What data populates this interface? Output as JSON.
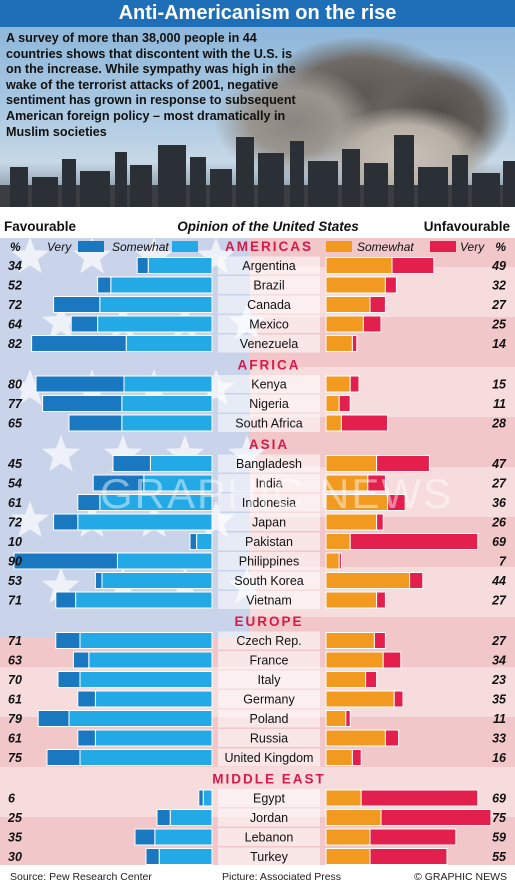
{
  "title": "Anti-Americanism on the rise",
  "intro": "A survey of more than 38,000 people in 44 countries shows that discontent with the U.S. is on the increase. While sympathy was high in the wake of the terrorist attacks of 2001, negative sentiment has grown in response to subsequent American foreign policy – most dramatically in Muslim societies",
  "footer": {
    "source": "Source: Pew Research Center",
    "picture": "Picture: Associated Press",
    "credit": "© GRAPHIC NEWS"
  },
  "watermark": "GRAPHIC NEWS",
  "colors": {
    "very_favourable": "#1a78c0",
    "somewhat_favourable": "#22a9e6",
    "somewhat_unfavourable": "#f29a1f",
    "very_unfavourable": "#e31f4e",
    "region": "#d61a4b",
    "title_bar": "#1f6fb8"
  },
  "chart_data": {
    "type": "bar",
    "title": "Opinion of the United States",
    "left_label": "Favourable",
    "right_label": "Unfavourable",
    "unit_label": "%",
    "legend": {
      "very_fav": "Very",
      "somewhat_fav": "Somewhat",
      "somewhat_unfav": "Somewhat",
      "very_unfav": "Very"
    },
    "xlim": [
      0,
      100
    ],
    "regions": [
      {
        "name": "AMERICAS",
        "countries": [
          {
            "name": "Argentina",
            "fav": 34,
            "very_fav": 5,
            "unfav": 49,
            "very_unfav": 19
          },
          {
            "name": "Brazil",
            "fav": 52,
            "very_fav": 6,
            "unfav": 32,
            "very_unfav": 5
          },
          {
            "name": "Canada",
            "fav": 72,
            "very_fav": 21,
            "unfav": 27,
            "very_unfav": 7
          },
          {
            "name": "Mexico",
            "fav": 64,
            "very_fav": 12,
            "unfav": 25,
            "very_unfav": 8
          },
          {
            "name": "Venezuela",
            "fav": 82,
            "very_fav": 43,
            "unfav": 14,
            "very_unfav": 2
          }
        ]
      },
      {
        "name": "AFRICA",
        "countries": [
          {
            "name": "Kenya",
            "fav": 80,
            "very_fav": 40,
            "unfav": 15,
            "very_unfav": 4
          },
          {
            "name": "Nigeria",
            "fav": 77,
            "very_fav": 36,
            "unfav": 11,
            "very_unfav": 5
          },
          {
            "name": "South Africa",
            "fav": 65,
            "very_fav": 24,
            "unfav": 28,
            "very_unfav": 21
          }
        ]
      },
      {
        "name": "ASIA",
        "countries": [
          {
            "name": "Bangladesh",
            "fav": 45,
            "very_fav": 17,
            "unfav": 47,
            "very_unfav": 24
          },
          {
            "name": "India",
            "fav": 54,
            "very_fav": 23,
            "unfav": 27,
            "very_unfav": 8
          },
          {
            "name": "Indonesia",
            "fav": 61,
            "very_fav": 10,
            "unfav": 36,
            "very_unfav": 8
          },
          {
            "name": "Japan",
            "fav": 72,
            "very_fav": 11,
            "unfav": 26,
            "very_unfav": 3
          },
          {
            "name": "Pakistan",
            "fav": 10,
            "very_fav": 3,
            "unfav": 69,
            "very_unfav": 58
          },
          {
            "name": "Philippines",
            "fav": 90,
            "very_fav": 47,
            "unfav": 7,
            "very_unfav": 1
          },
          {
            "name": "South Korea",
            "fav": 53,
            "very_fav": 3,
            "unfav": 44,
            "very_unfav": 6
          },
          {
            "name": "Vietnam",
            "fav": 71,
            "very_fav": 9,
            "unfav": 27,
            "very_unfav": 4
          }
        ]
      },
      {
        "name": "EUROPE",
        "countries": [
          {
            "name": "Czech Rep.",
            "fav": 71,
            "very_fav": 11,
            "unfav": 27,
            "very_unfav": 5
          },
          {
            "name": "France",
            "fav": 63,
            "very_fav": 7,
            "unfav": 34,
            "very_unfav": 8
          },
          {
            "name": "Italy",
            "fav": 70,
            "very_fav": 10,
            "unfav": 23,
            "very_unfav": 5
          },
          {
            "name": "Germany",
            "fav": 61,
            "very_fav": 8,
            "unfav": 35,
            "very_unfav": 4
          },
          {
            "name": "Poland",
            "fav": 79,
            "very_fav": 14,
            "unfav": 11,
            "very_unfav": 2
          },
          {
            "name": "Russia",
            "fav": 61,
            "very_fav": 8,
            "unfav": 33,
            "very_unfav": 6
          },
          {
            "name": "United Kingdom",
            "fav": 75,
            "very_fav": 15,
            "unfav": 16,
            "very_unfav": 4
          }
        ]
      },
      {
        "name": "MIDDLE EAST",
        "countries": [
          {
            "name": "Egypt",
            "fav": 6,
            "very_fav": 2,
            "unfav": 69,
            "very_unfav": 53
          },
          {
            "name": "Jordan",
            "fav": 25,
            "very_fav": 6,
            "unfav": 75,
            "very_unfav": 50
          },
          {
            "name": "Lebanon",
            "fav": 35,
            "very_fav": 9,
            "unfav": 59,
            "very_unfav": 39
          },
          {
            "name": "Turkey",
            "fav": 30,
            "very_fav": 6,
            "unfav": 55,
            "very_unfav": 35
          }
        ]
      }
    ]
  }
}
